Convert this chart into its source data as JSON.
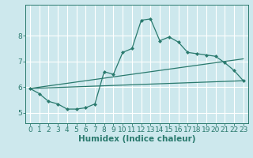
{
  "xlabel": "Humidex (Indice chaleur)",
  "bg_color": "#cde8ed",
  "grid_color": "#ffffff",
  "line_color": "#2a7a6e",
  "xlim": [
    -0.5,
    23.5
  ],
  "ylim": [
    4.6,
    9.2
  ],
  "yticks": [
    5,
    6,
    7,
    8
  ],
  "xticks": [
    0,
    1,
    2,
    3,
    4,
    5,
    6,
    7,
    8,
    9,
    10,
    11,
    12,
    13,
    14,
    15,
    16,
    17,
    18,
    19,
    20,
    21,
    22,
    23
  ],
  "series": [
    [
      0,
      5.95
    ],
    [
      1,
      5.75
    ],
    [
      2,
      5.45
    ],
    [
      3,
      5.35
    ],
    [
      4,
      5.15
    ],
    [
      5,
      5.15
    ],
    [
      6,
      5.2
    ],
    [
      7,
      5.35
    ],
    [
      8,
      6.6
    ],
    [
      9,
      6.5
    ],
    [
      10,
      7.35
    ],
    [
      11,
      7.5
    ],
    [
      12,
      8.6
    ],
    [
      13,
      8.65
    ],
    [
      14,
      7.8
    ],
    [
      15,
      7.95
    ],
    [
      16,
      7.75
    ],
    [
      17,
      7.35
    ],
    [
      18,
      7.3
    ],
    [
      19,
      7.25
    ],
    [
      20,
      7.2
    ],
    [
      21,
      6.95
    ],
    [
      22,
      6.65
    ],
    [
      23,
      6.25
    ]
  ],
  "line2": [
    [
      0,
      5.95
    ],
    [
      23,
      6.25
    ]
  ],
  "line3": [
    [
      0,
      5.95
    ],
    [
      23,
      7.1
    ]
  ],
  "marker_size": 2.5,
  "line_width": 0.9,
  "font_size": 6.5,
  "xlabel_fontsize": 7.5
}
